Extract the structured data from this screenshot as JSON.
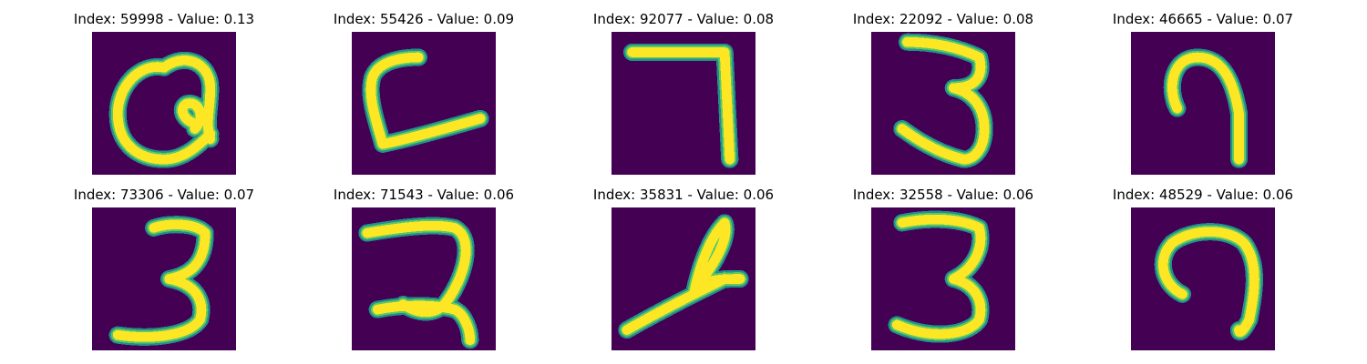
{
  "figure": {
    "colors": {
      "background": "#440154",
      "stroke_outer": "#21908c",
      "stroke_mid": "#5ec962",
      "stroke_core": "#fde725"
    },
    "panels": [
      {
        "title": "Index: 59998 - Value: 0.13"
      },
      {
        "title": "Index: 55426 - Value: 0.09"
      },
      {
        "title": "Index: 92077 - Value: 0.08"
      },
      {
        "title": "Index: 22092 - Value: 0.08"
      },
      {
        "title": "Index: 46665 - Value: 0.07"
      },
      {
        "title": "Index: 73306 - Value: 0.07"
      },
      {
        "title": "Index: 71543 - Value: 0.06"
      },
      {
        "title": "Index: 35831 - Value: 0.06"
      },
      {
        "title": "Index: 32558 - Value: 0.06"
      },
      {
        "title": "Index: 48529 - Value: 0.06"
      }
    ]
  }
}
